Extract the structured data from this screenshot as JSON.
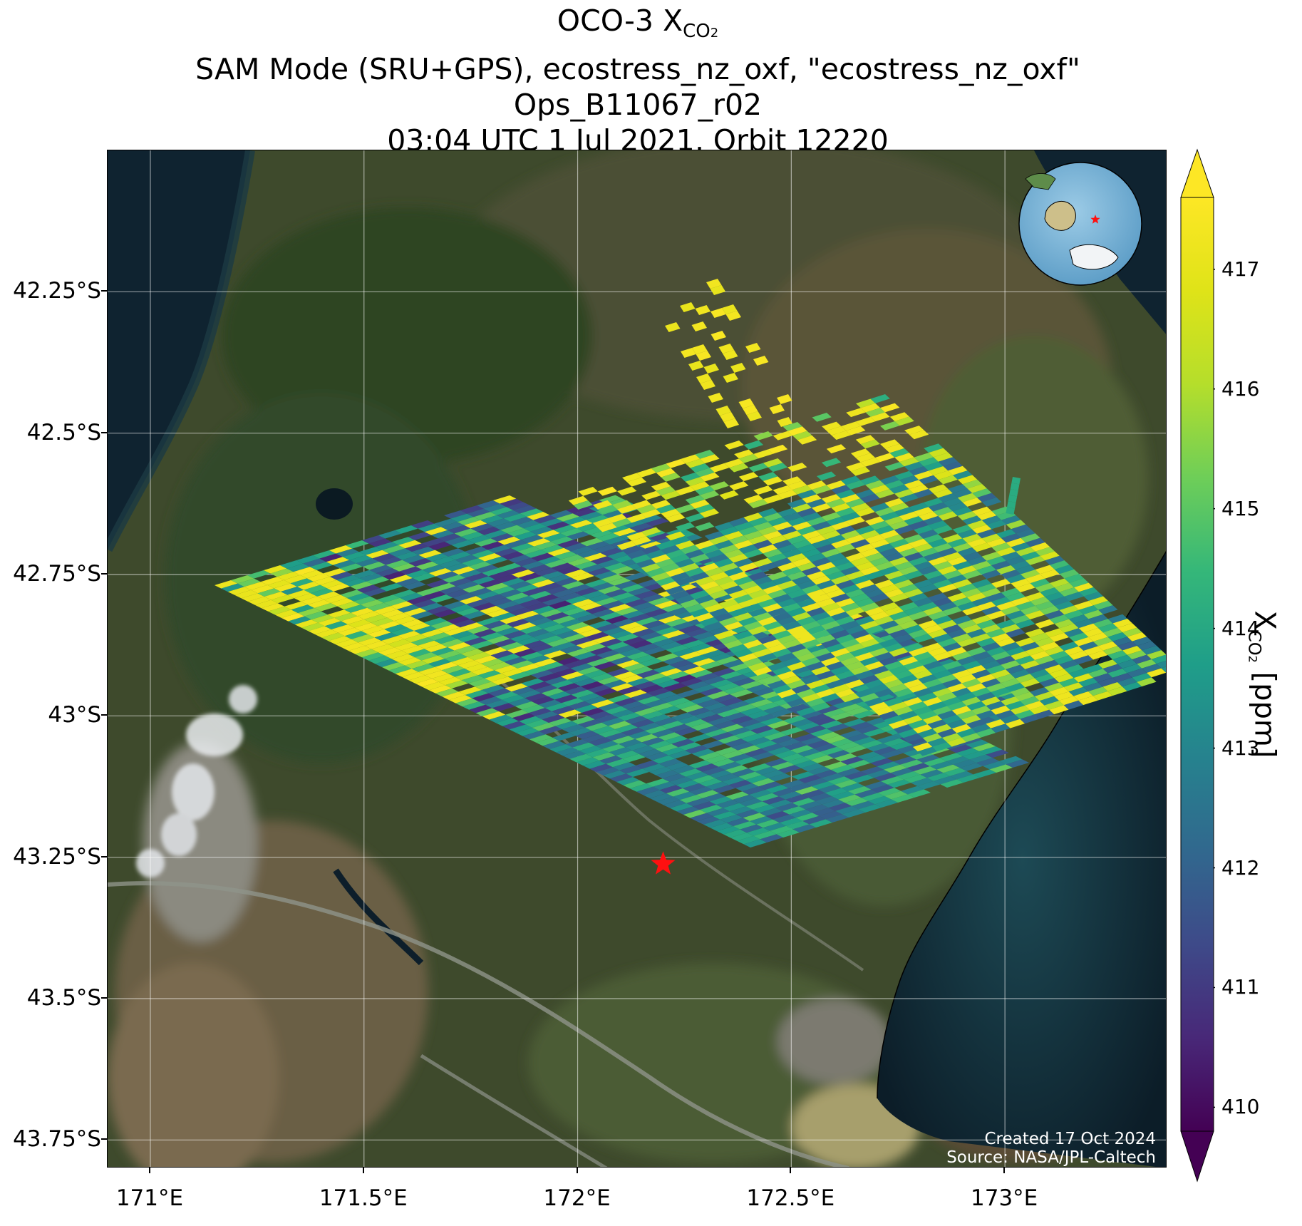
{
  "title": {
    "line1_main": "OCO-3 X",
    "line1_sub": "CO",
    "line1_sub2": "2",
    "line2": "SAM Mode (SRU+GPS), ecostress_nz_oxf, \"ecostress_nz_oxf\"",
    "line3": "Ops_B11067_r02",
    "line4": "03:04 UTC 1 Jul 2021, Orbit 12220"
  },
  "map": {
    "lon_range": [
      170.9,
      173.38
    ],
    "lat_range": [
      -43.8,
      -42.0
    ],
    "y_ticks": [
      {
        "lat": -42.25,
        "label": "42.25°S"
      },
      {
        "lat": -42.5,
        "label": "42.5°S"
      },
      {
        "lat": -42.75,
        "label": "42.75°S"
      },
      {
        "lat": -43.0,
        "label": "43°S"
      },
      {
        "lat": -43.25,
        "label": "43.25°S"
      },
      {
        "lat": -43.5,
        "label": "43.5°S"
      },
      {
        "lat": -43.75,
        "label": "43.75°S"
      }
    ],
    "x_ticks": [
      {
        "lon": 171.0,
        "label": "171°E"
      },
      {
        "lon": 171.5,
        "label": "171.5°E"
      },
      {
        "lon": 172.0,
        "label": "172°E"
      },
      {
        "lon": 172.5,
        "label": "172.5°E"
      },
      {
        "lon": 173.0,
        "label": "173°E"
      }
    ],
    "grid": true,
    "target_marker": {
      "lon": 172.2,
      "lat": -43.262,
      "color": "#ff1010"
    },
    "credit_line1": "Created 17 Oct 2024",
    "credit_line2": "Source: NASA/JPL-Caltech"
  },
  "colorbar": {
    "ticks": [
      410,
      411,
      412,
      413,
      414,
      415,
      416,
      417
    ],
    "vmin": 409.8,
    "vmax": 417.6,
    "label_main": "X",
    "label_sub": "CO",
    "label_sub2": "2",
    "label_unit": "[ppm]",
    "colormap": "viridis"
  }
}
